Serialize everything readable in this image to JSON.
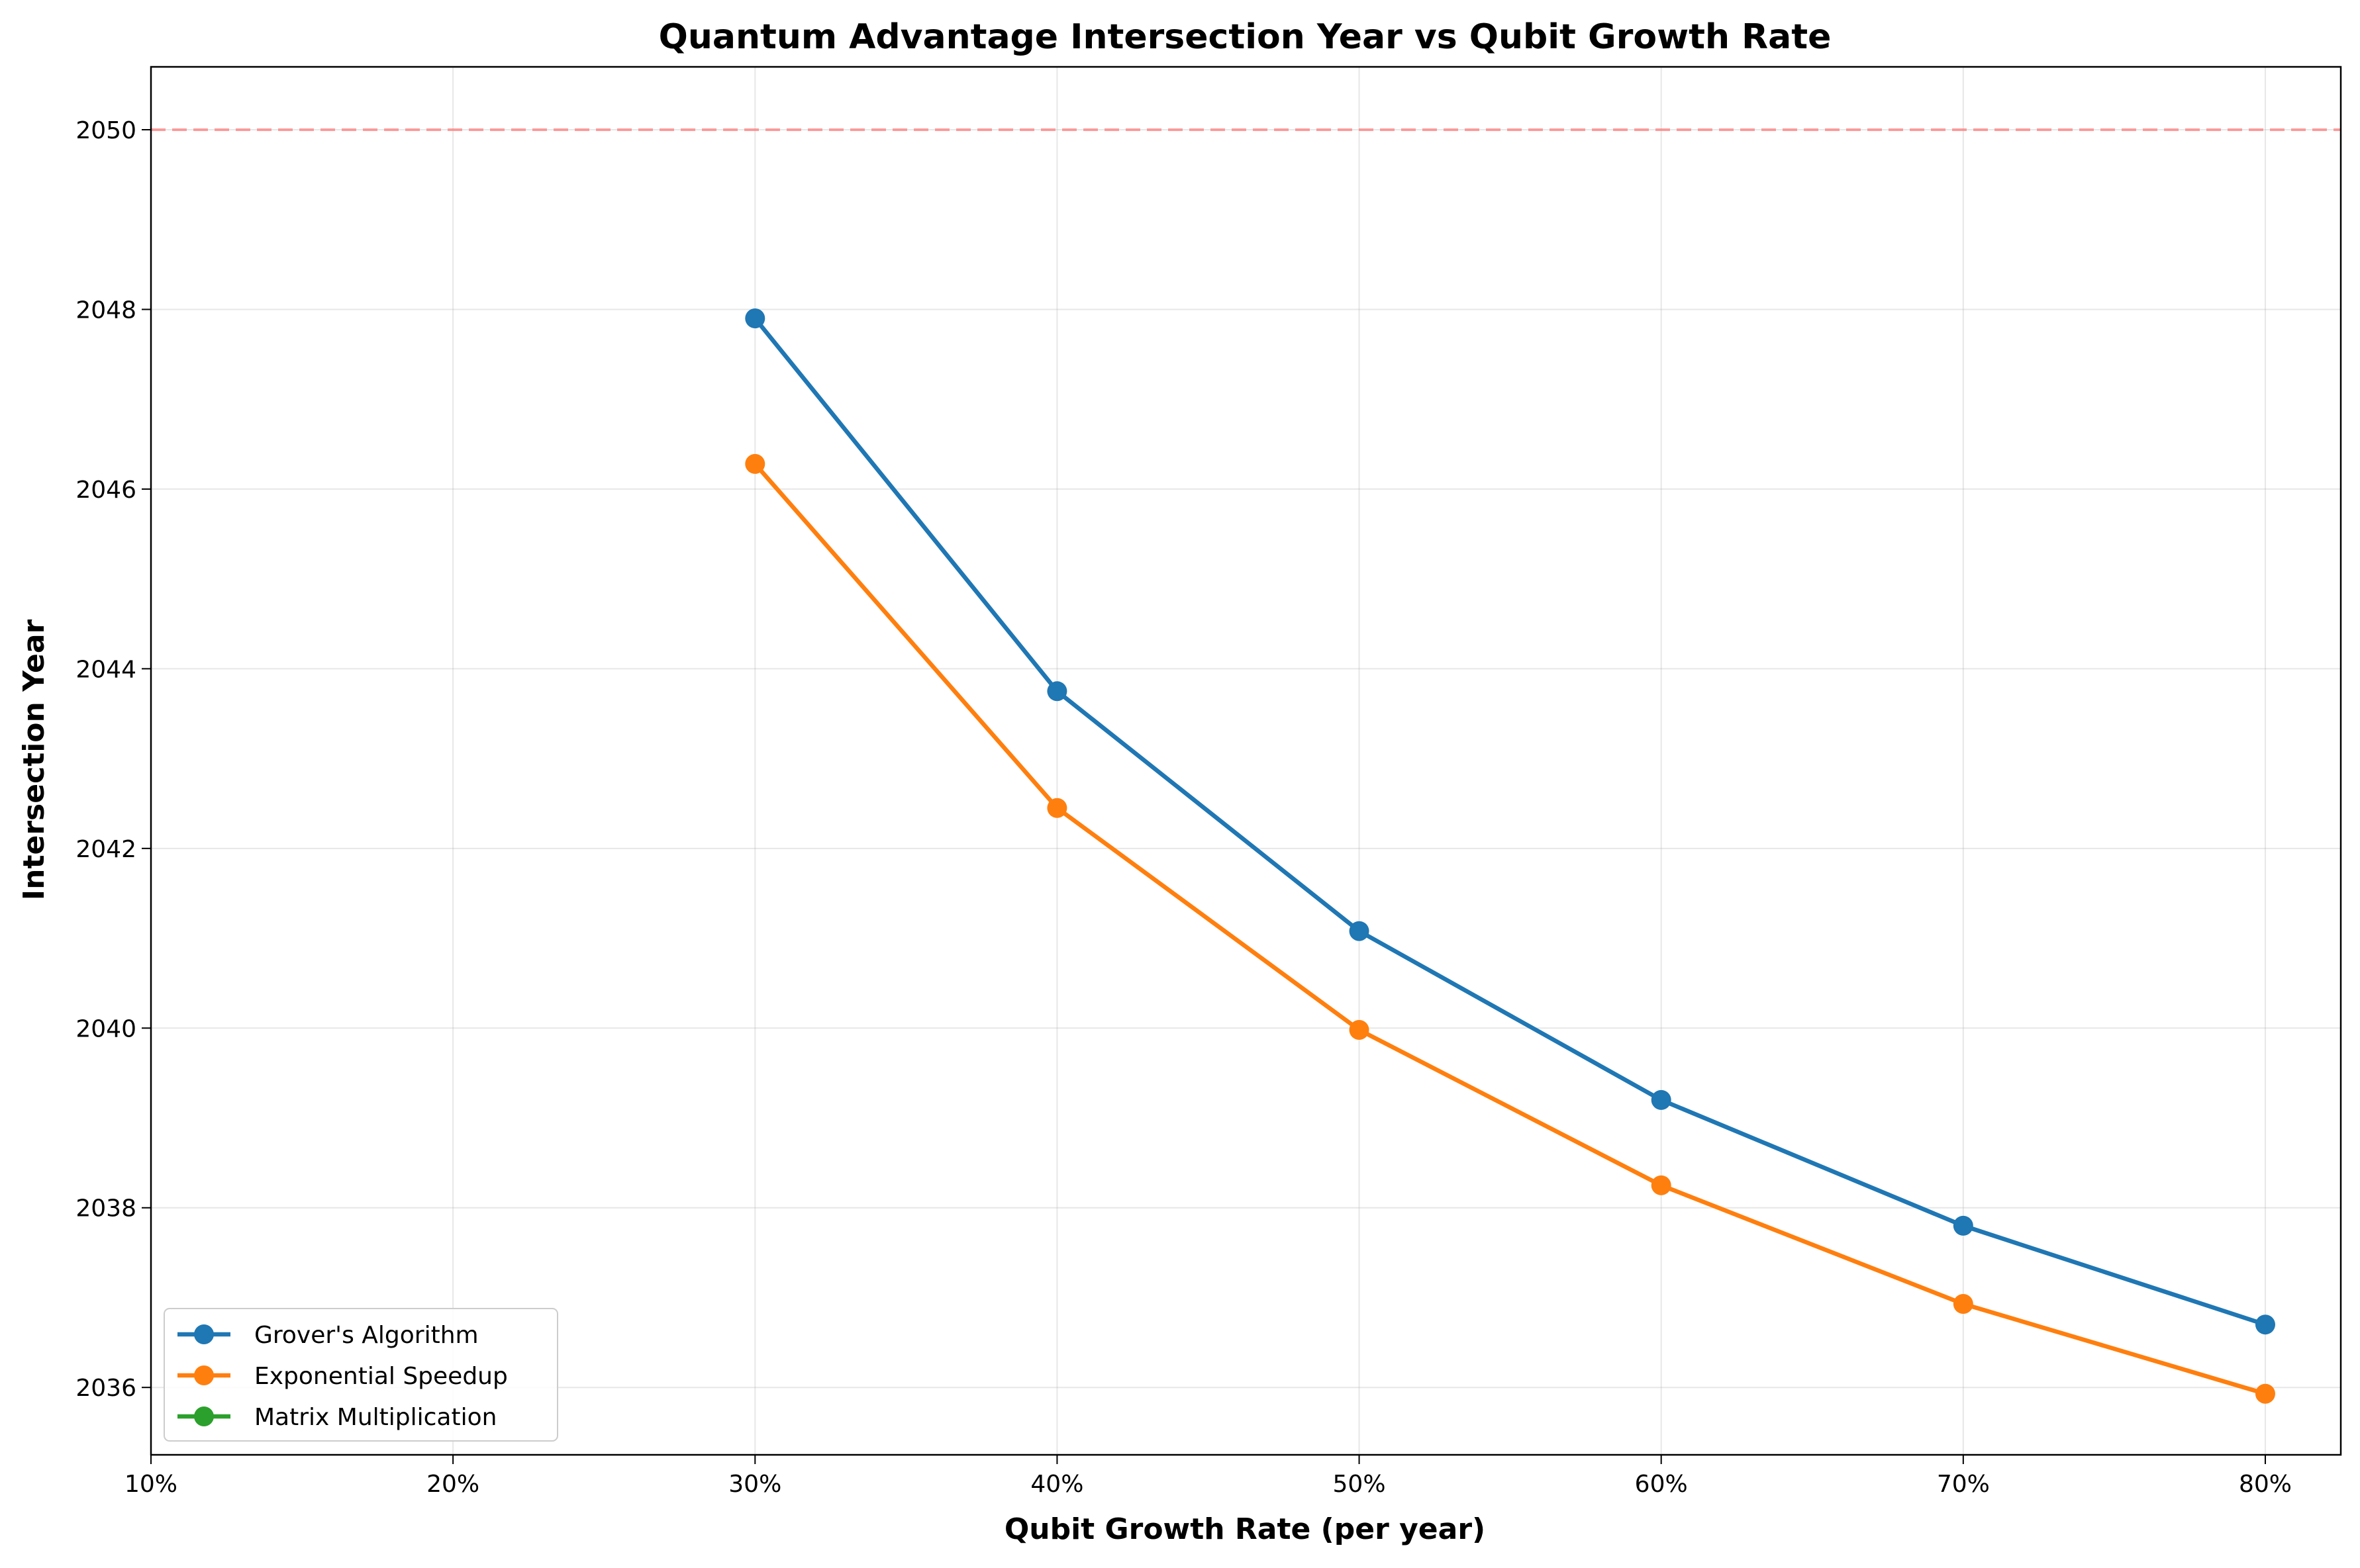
{
  "chart_data": {
    "type": "line",
    "title": "Quantum Advantage Intersection Year vs Qubit Growth Rate",
    "xlabel": "Qubit Growth Rate (per year)",
    "ylabel": "Intersection Year",
    "x_ticks": [
      {
        "value": 0.1,
        "label": "10%"
      },
      {
        "value": 0.2,
        "label": "20%"
      },
      {
        "value": 0.3,
        "label": "30%"
      },
      {
        "value": 0.4,
        "label": "40%"
      },
      {
        "value": 0.5,
        "label": "50%"
      },
      {
        "value": 0.6,
        "label": "60%"
      },
      {
        "value": 0.7,
        "label": "70%"
      },
      {
        "value": 0.8,
        "label": "80%"
      }
    ],
    "y_ticks": [
      {
        "value": 2036,
        "label": "2036"
      },
      {
        "value": 2038,
        "label": "2038"
      },
      {
        "value": 2040,
        "label": "2040"
      },
      {
        "value": 2042,
        "label": "2042"
      },
      {
        "value": 2044,
        "label": "2044"
      },
      {
        "value": 2046,
        "label": "2046"
      },
      {
        "value": 2048,
        "label": "2048"
      },
      {
        "value": 2050,
        "label": "2050"
      }
    ],
    "xlim": [
      0.1,
      0.825
    ],
    "ylim": [
      2035.25,
      2050.7
    ],
    "grid": true,
    "legend_position": "lower-left",
    "reference_line": {
      "y": 2050,
      "color": "#ff7f7f",
      "style": "dashed"
    },
    "series": [
      {
        "name": "Grover's Algorithm",
        "color": "#1f77b4",
        "x": [
          0.3,
          0.4,
          0.5,
          0.6,
          0.7,
          0.8
        ],
        "y": [
          2047.9,
          2043.75,
          2041.08,
          2039.2,
          2037.8,
          2036.7
        ]
      },
      {
        "name": "Exponential Speedup",
        "color": "#ff7f0e",
        "x": [
          0.3,
          0.4,
          0.5,
          0.6,
          0.7,
          0.8
        ],
        "y": [
          2046.28,
          2042.45,
          2039.98,
          2038.25,
          2036.93,
          2035.93
        ]
      },
      {
        "name": "Matrix Multiplication",
        "color": "#2ca02c",
        "x": [],
        "y": []
      }
    ]
  }
}
